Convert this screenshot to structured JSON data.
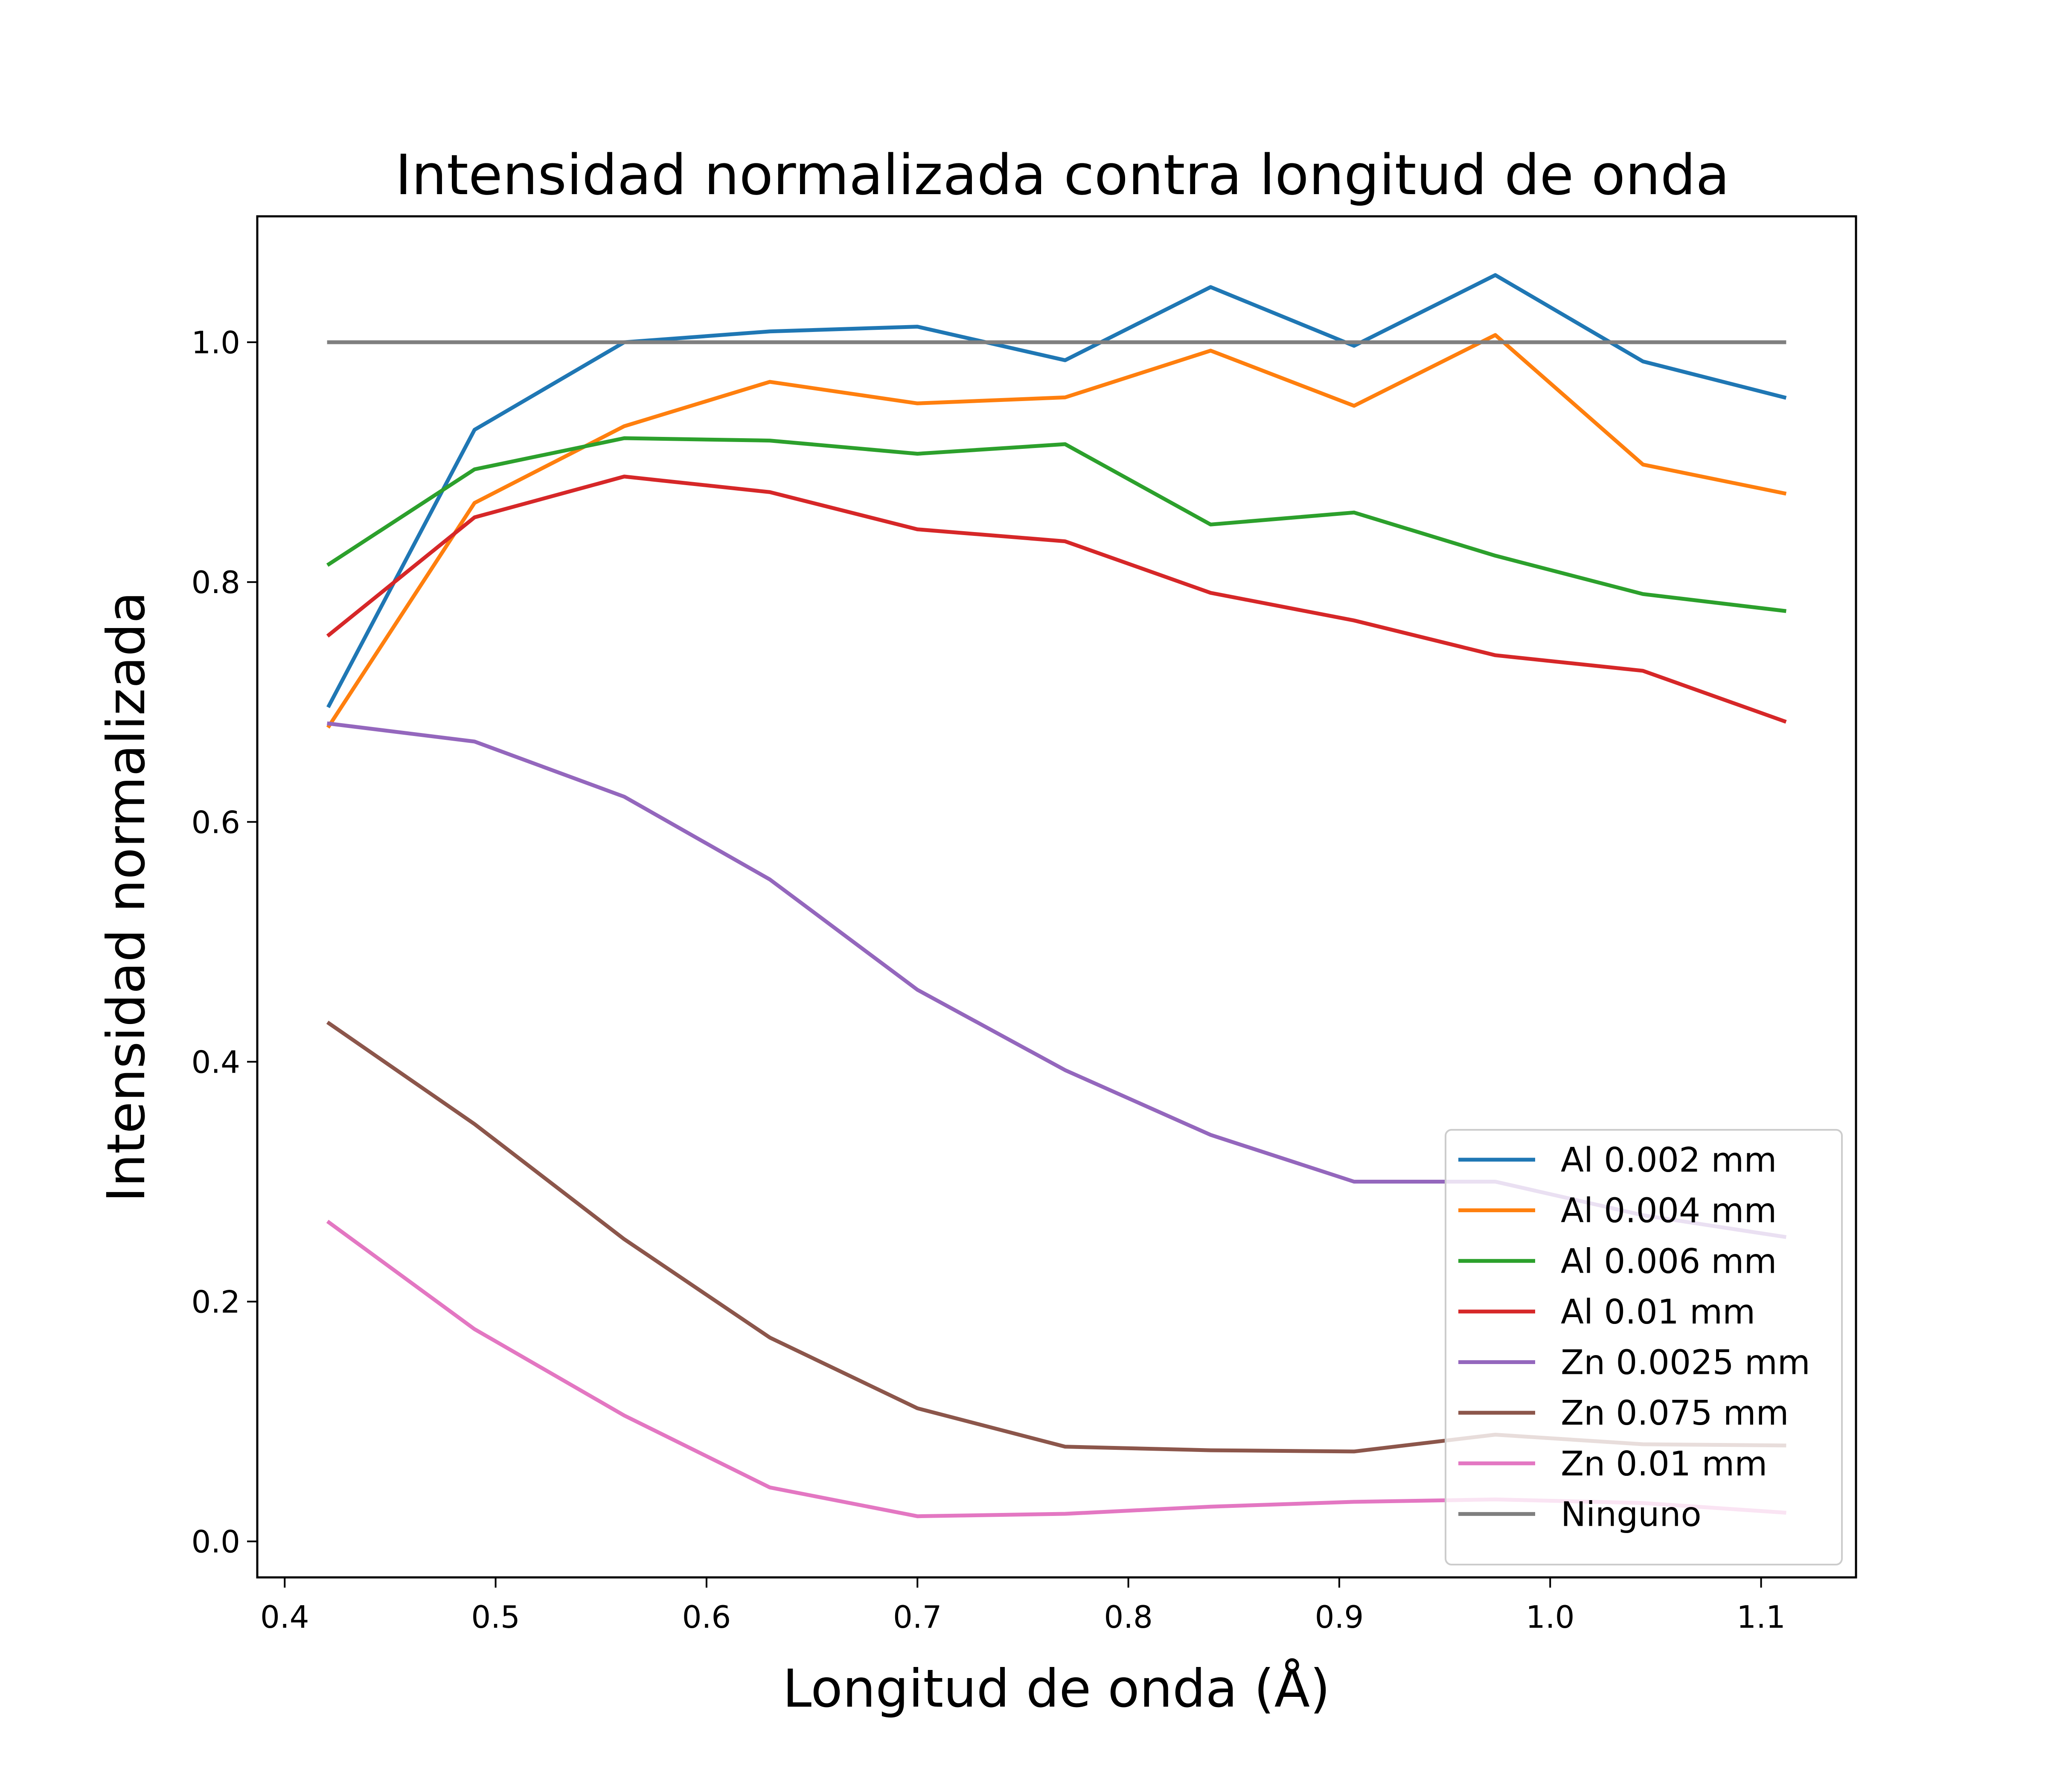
{
  "chart_data": {
    "type": "line",
    "title": "Intensidad normalizada contra longitud de onda",
    "xlabel": "Longitud de onda (Å)",
    "ylabel": "Intensidad normalizada",
    "xlim": [
      0.387,
      1.145
    ],
    "ylim": [
      -0.03,
      1.105
    ],
    "xticks": [
      "0.4",
      "0.5",
      "0.6",
      "0.7",
      "0.8",
      "0.9",
      "1.0",
      "1.1"
    ],
    "yticks": [
      "0.0",
      "0.2",
      "0.4",
      "0.6",
      "0.8",
      "1.0"
    ],
    "grid": false,
    "legend_position": "lower right",
    "x": [
      0.421,
      0.49,
      0.561,
      0.63,
      0.7,
      0.77,
      0.839,
      0.907,
      0.974,
      1.044,
      1.111
    ],
    "series": [
      {
        "name": "Al 0.002 mm",
        "color": "#1f77b4",
        "values": [
          0.697,
          0.927,
          1.0,
          1.009,
          1.013,
          0.985,
          1.046,
          0.997,
          1.056,
          0.984,
          0.954
        ]
      },
      {
        "name": "Al 0.004 mm",
        "color": "#ff7f0e",
        "values": [
          0.68,
          0.866,
          0.93,
          0.967,
          0.949,
          0.954,
          0.993,
          0.947,
          1.006,
          0.898,
          0.874
        ]
      },
      {
        "name": "Al 0.006 mm",
        "color": "#2ca02c",
        "values": [
          0.815,
          0.894,
          0.92,
          0.918,
          0.907,
          0.915,
          0.848,
          0.858,
          0.822,
          0.79,
          0.776
        ]
      },
      {
        "name": "Al 0.01 mm",
        "color": "#d62728",
        "values": [
          0.756,
          0.854,
          0.888,
          0.875,
          0.844,
          0.834,
          0.791,
          0.768,
          0.739,
          0.726,
          0.684
        ]
      },
      {
        "name": "Zn 0.0025 mm",
        "color": "#9467bd",
        "values": [
          0.682,
          0.667,
          0.621,
          0.552,
          0.46,
          0.393,
          0.339,
          0.3,
          0.3,
          0.272,
          0.254
        ]
      },
      {
        "name": "Zn 0.075 mm",
        "color": "#8c564b",
        "values": [
          0.432,
          0.348,
          0.252,
          0.17,
          0.111,
          0.079,
          0.076,
          0.075,
          0.089,
          0.081,
          0.08
        ]
      },
      {
        "name": "Zn 0.01 mm",
        "color": "#e377c2",
        "values": [
          0.266,
          0.177,
          0.105,
          0.045,
          0.021,
          0.023,
          0.029,
          0.033,
          0.035,
          0.032,
          0.024
        ]
      },
      {
        "name": "Ninguno",
        "color": "#7f7f7f",
        "values": [
          1.0,
          1.0,
          1.0,
          1.0,
          1.0,
          1.0,
          1.0,
          1.0,
          1.0,
          1.0,
          1.0
        ]
      }
    ]
  }
}
